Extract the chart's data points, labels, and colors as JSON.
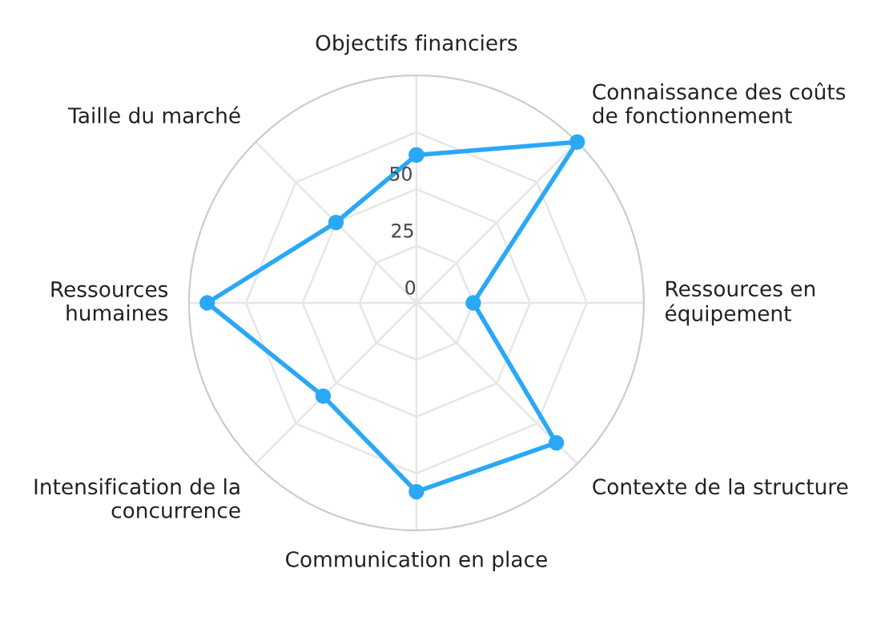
{
  "chart_data": {
    "type": "radar",
    "categories": [
      "Objectifs financiers",
      "Connaissance des coûts\nde fonctionnement",
      "Ressources en\néquipement",
      "Contexte de la structure",
      "Communication en place",
      "Intensification de la\nconcurrence",
      "Ressources\nhumaines",
      "Taille du marché"
    ],
    "series": [
      {
        "color": "#2aa8f6",
        "values": [
          65,
          100,
          25,
          87,
          83,
          58,
          92,
          50
        ]
      }
    ],
    "ylim": [
      0,
      100
    ],
    "yticks": [
      0,
      25,
      50
    ],
    "marker": "circle",
    "line_style": "solid",
    "grid": true
  }
}
